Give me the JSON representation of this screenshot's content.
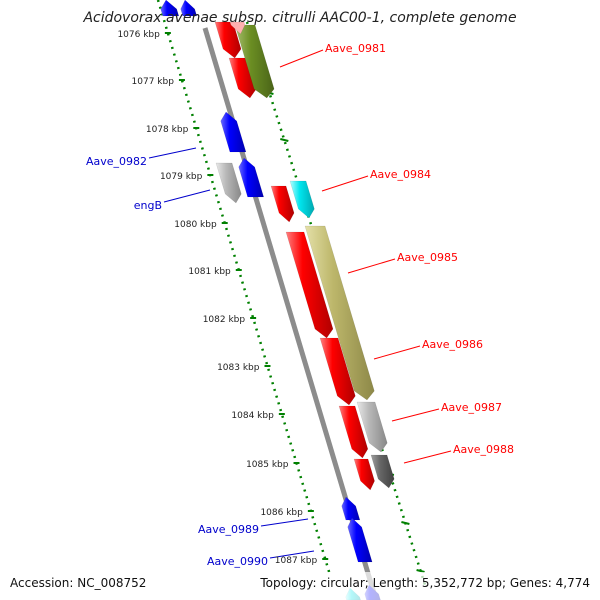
{
  "title": "Acidovorax avenae subsp. citrulli AAC00-1, complete genome",
  "footer": {
    "accession": "Accession: NC_008752",
    "summary": "Topology: circular; Length: 5,352,772 bp; Genes: 4,774"
  },
  "ruler_labels": [
    "1076 kbp",
    "1077 kbp",
    "1078 kbp",
    "1079 kbp",
    "1080 kbp",
    "1081 kbp",
    "1082 kbp",
    "1083 kbp",
    "1084 kbp",
    "1085 kbp",
    "1086 kbp",
    "1087 kbp"
  ],
  "gene_labels_right": [
    "Aave_0981",
    "Aave_0984",
    "Aave_0985",
    "Aave_0986",
    "Aave_0987",
    "Aave_0988"
  ],
  "gene_labels_left": [
    "Aave_0982",
    "engB",
    "Aave_0989",
    "Aave_0990"
  ],
  "colors": {
    "forward_cds": "#0000ff",
    "reverse_cds": "#ff0000",
    "ruler": "#008000",
    "backbone": "#808080",
    "label_right": "#ff0000",
    "label_left": "#0000cc",
    "olive": "#6b8e23",
    "khaki": "#bdb76b",
    "cyan": "#00e5ee",
    "grey": "#b0b0b0",
    "dark_grey": "#606060"
  }
}
